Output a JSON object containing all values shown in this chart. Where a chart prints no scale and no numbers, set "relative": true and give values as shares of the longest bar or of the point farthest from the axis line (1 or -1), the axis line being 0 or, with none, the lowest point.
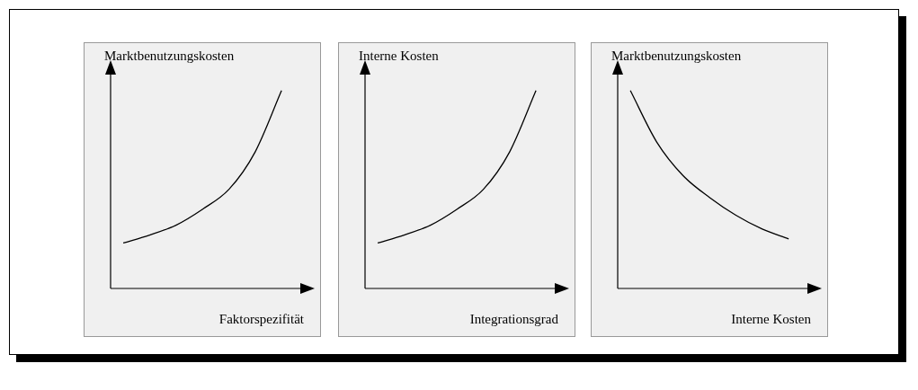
{
  "chart_data": [
    {
      "type": "line",
      "relative": true,
      "categories": [
        null,
        null,
        null,
        null,
        null,
        null,
        null
      ],
      "values": [
        0.23,
        0.27,
        0.32,
        0.4,
        0.5,
        0.69,
        1
      ],
      "color": "#000000",
      "xlabel": "Faktorspezifität",
      "ylabel": "Marktbenutzungskosten",
      "marker": "none"
    },
    {
      "type": "line",
      "relative": true,
      "categories": [
        null,
        null,
        null,
        null,
        null,
        null,
        null
      ],
      "values": [
        0.23,
        0.27,
        0.32,
        0.4,
        0.5,
        0.69,
        1
      ],
      "color": "#000000",
      "xlabel": "Integrationsgrad",
      "ylabel": "Interne Kosten",
      "marker": "none"
    },
    {
      "type": "line",
      "relative": true,
      "categories": [
        null,
        null,
        null,
        null,
        null,
        null,
        null
      ],
      "values": [
        1,
        0.74,
        0.57,
        0.46,
        0.37,
        0.3,
        0.25
      ],
      "color": "#000000",
      "xlabel": "Interne Kosten",
      "ylabel": "Marktbenutzungskosten",
      "marker": "none"
    }
  ]
}
